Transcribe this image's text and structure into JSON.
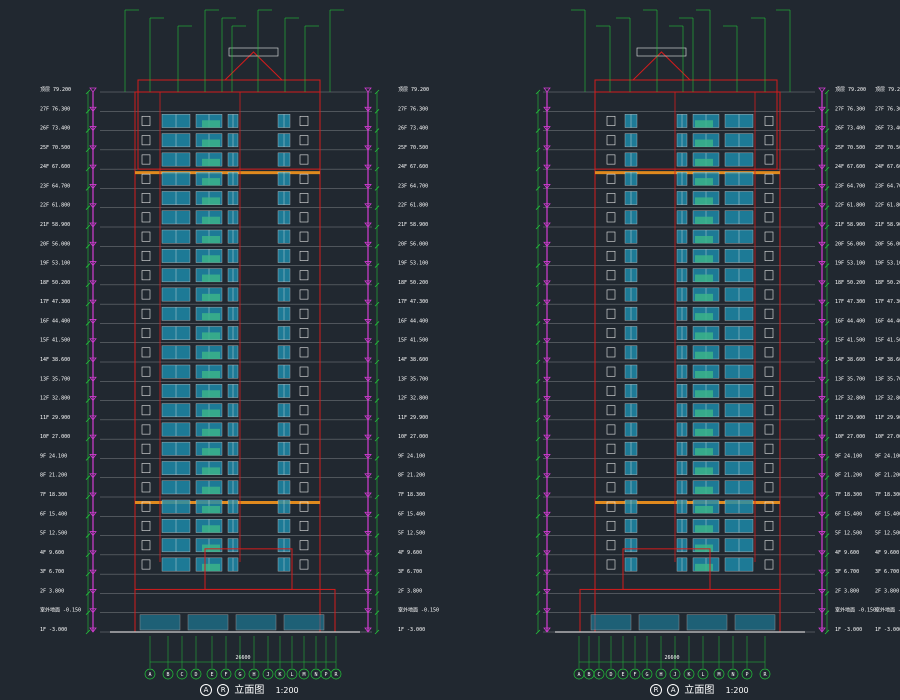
{
  "colors": {
    "background": "#212830",
    "outline": "#d41c1c",
    "floor_line": "#cfcfcf",
    "dimension": "#22c43a",
    "level_marker": "#d23cd2",
    "band": "#e08a1e",
    "glazing": "#1d8fb0",
    "balcony": "#3bb38a",
    "window_frame": "#e8e8e8",
    "text": "#ffffff",
    "annotation": "#e8e020"
  },
  "elevations": [
    {
      "id": "left",
      "caption_start": "A",
      "caption_end": "R",
      "caption_text": "立面图",
      "scale": "1:200",
      "top_level": "79.200",
      "width_dim": "26600",
      "axis_bubbles": [
        "A",
        "B",
        "C",
        "D",
        "E",
        "F",
        "G",
        "H",
        "J",
        "K",
        "L",
        "M",
        "N",
        "P",
        "R"
      ],
      "callouts": [
        "",
        "",
        "",
        "",
        "",
        "",
        "",
        "",
        "",
        ""
      ],
      "annotations": []
    },
    {
      "id": "right",
      "caption_start": "R",
      "caption_end": "A",
      "caption_text": "立面图",
      "scale": "1:200",
      "top_level": "79.200",
      "width_dim": "26600",
      "axis_bubbles": [
        "R",
        "P",
        "N",
        "M",
        "L",
        "K",
        "J",
        "H",
        "G",
        "F",
        "E",
        "D",
        "C",
        "B",
        "A"
      ],
      "callouts": [
        "",
        "",
        "",
        "",
        "",
        "",
        "",
        "",
        "",
        ""
      ],
      "annotations": []
    }
  ],
  "levels": [
    {
      "floor": "顶层",
      "elev": "79.200"
    },
    {
      "floor": "27F",
      "elev": "76.300"
    },
    {
      "floor": "26F",
      "elev": "73.400"
    },
    {
      "floor": "25F",
      "elev": "70.500"
    },
    {
      "floor": "24F",
      "elev": "67.600"
    },
    {
      "floor": "23F",
      "elev": "64.700"
    },
    {
      "floor": "22F",
      "elev": "61.800"
    },
    {
      "floor": "21F",
      "elev": "58.900"
    },
    {
      "floor": "20F",
      "elev": "56.000"
    },
    {
      "floor": "19F",
      "elev": "53.100"
    },
    {
      "floor": "18F",
      "elev": "50.200"
    },
    {
      "floor": "17F",
      "elev": "47.300"
    },
    {
      "floor": "16F",
      "elev": "44.400"
    },
    {
      "floor": "15F",
      "elev": "41.500"
    },
    {
      "floor": "14F",
      "elev": "38.600"
    },
    {
      "floor": "13F",
      "elev": "35.700"
    },
    {
      "floor": "12F",
      "elev": "32.800"
    },
    {
      "floor": "11F",
      "elev": "29.900"
    },
    {
      "floor": "10F",
      "elev": "27.000"
    },
    {
      "floor": "9F",
      "elev": "24.100"
    },
    {
      "floor": "8F",
      "elev": "21.200"
    },
    {
      "floor": "7F",
      "elev": "18.300"
    },
    {
      "floor": "6F",
      "elev": "15.400"
    },
    {
      "floor": "5F",
      "elev": "12.500"
    },
    {
      "floor": "4F",
      "elev": "9.600"
    },
    {
      "floor": "3F",
      "elev": "6.700"
    },
    {
      "floor": "2F",
      "elev": "3.800"
    },
    {
      "floor": "室外地面",
      "elev": "-0.150"
    },
    {
      "floor": "1F",
      "elev": "-3.000"
    }
  ]
}
